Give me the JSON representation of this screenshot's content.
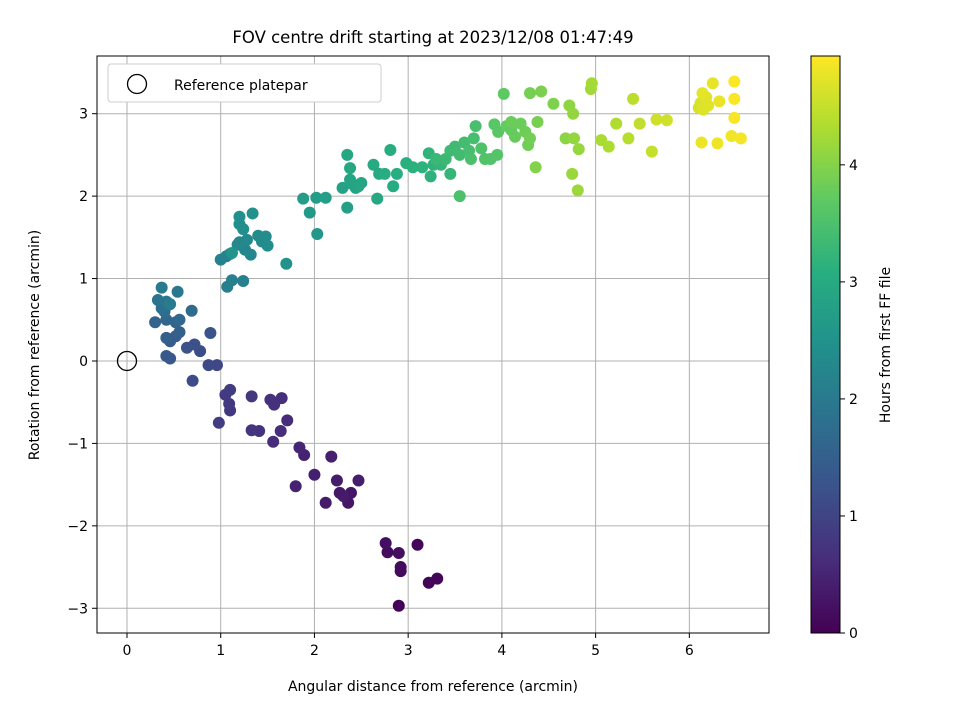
{
  "chart_data": {
    "type": "scatter",
    "title": "FOV centre drift starting at 2023/12/08 01:47:49",
    "xlabel": "Angular distance from reference (arcmin)",
    "ylabel": "Rotation from reference (arcmin)",
    "xlim": [
      -0.32,
      6.85
    ],
    "ylim": [
      -3.3,
      3.7
    ],
    "xticks": [
      0,
      1,
      2,
      3,
      4,
      5,
      6
    ],
    "yticks": [
      -3,
      -2,
      -1,
      0,
      1,
      2,
      3
    ],
    "grid": true,
    "legend": {
      "placement": "top-left",
      "entries": [
        "Reference platepar"
      ]
    },
    "reference_point": {
      "x": 0,
      "y": 0
    },
    "colorbar": {
      "label": "Hours from first FF file",
      "range": [
        0,
        4.93
      ],
      "ticks": [
        0,
        1,
        2,
        3,
        4
      ],
      "colormap": "viridis"
    },
    "points": [
      [
        2.9,
        -2.97,
        0.03
      ],
      [
        3.22,
        -2.69,
        0.05
      ],
      [
        3.31,
        -2.64,
        0.07
      ],
      [
        3.1,
        -2.23,
        0.09
      ],
      [
        2.92,
        -2.55,
        0.12
      ],
      [
        2.92,
        -2.5,
        0.14
      ],
      [
        2.78,
        -2.32,
        0.16
      ],
      [
        2.9,
        -2.33,
        0.18
      ],
      [
        2.76,
        -2.21,
        0.2
      ],
      [
        2.36,
        -1.72,
        0.28
      ],
      [
        2.39,
        -1.6,
        0.3
      ],
      [
        2.27,
        -1.6,
        0.32
      ],
      [
        2.31,
        -1.64,
        0.34
      ],
      [
        2.12,
        -1.72,
        0.36
      ],
      [
        2.24,
        -1.45,
        0.38
      ],
      [
        2.47,
        -1.45,
        0.4
      ],
      [
        2.18,
        -1.16,
        0.42
      ],
      [
        2.0,
        -1.38,
        0.44
      ],
      [
        1.8,
        -1.52,
        0.46
      ],
      [
        1.89,
        -1.14,
        0.48
      ],
      [
        1.84,
        -1.05,
        0.5
      ],
      [
        1.71,
        -0.72,
        0.6
      ],
      [
        1.64,
        -0.85,
        0.62
      ],
      [
        1.56,
        -0.98,
        0.64
      ],
      [
        1.65,
        -0.45,
        0.66
      ],
      [
        1.57,
        -0.53,
        0.68
      ],
      [
        1.53,
        -0.47,
        0.7
      ],
      [
        1.41,
        -0.85,
        0.72
      ],
      [
        1.33,
        -0.84,
        0.74
      ],
      [
        1.33,
        -0.43,
        0.76
      ],
      [
        1.1,
        -0.6,
        0.8
      ],
      [
        1.09,
        -0.52,
        0.82
      ],
      [
        1.05,
        -0.41,
        0.84
      ],
      [
        1.1,
        -0.35,
        0.86
      ],
      [
        0.98,
        -0.75,
        0.88
      ],
      [
        0.96,
        -0.05,
        1.05
      ],
      [
        0.87,
        -0.05,
        1.08
      ],
      [
        0.7,
        -0.24,
        1.12
      ],
      [
        0.78,
        0.12,
        1.16
      ],
      [
        0.72,
        0.2,
        1.2
      ],
      [
        0.64,
        0.16,
        1.24
      ],
      [
        0.89,
        0.34,
        1.28
      ],
      [
        0.46,
        0.03,
        1.32
      ],
      [
        0.42,
        0.06,
        1.36
      ],
      [
        0.46,
        0.24,
        1.4
      ],
      [
        0.52,
        0.3,
        1.44
      ],
      [
        0.42,
        0.28,
        1.48
      ],
      [
        0.56,
        0.35,
        1.52
      ],
      [
        0.3,
        0.47,
        1.56
      ],
      [
        0.52,
        0.47,
        1.6
      ],
      [
        0.42,
        0.5,
        1.64
      ],
      [
        0.56,
        0.5,
        1.68
      ],
      [
        0.69,
        0.61,
        1.72
      ],
      [
        0.4,
        0.6,
        1.76
      ],
      [
        0.37,
        0.64,
        1.8
      ],
      [
        0.44,
        0.68,
        1.84
      ],
      [
        0.33,
        0.74,
        1.88
      ],
      [
        0.42,
        0.72,
        1.92
      ],
      [
        0.54,
        0.84,
        1.96
      ],
      [
        0.37,
        0.89,
        2.0
      ],
      [
        0.46,
        0.69,
        2.04
      ],
      [
        1.07,
        0.9,
        2.1
      ],
      [
        1.12,
        0.98,
        2.12
      ],
      [
        1.24,
        0.97,
        2.14
      ],
      [
        1.0,
        1.23,
        2.16
      ],
      [
        1.06,
        1.27,
        2.18
      ],
      [
        1.1,
        1.3,
        2.2
      ],
      [
        1.26,
        1.35,
        2.22
      ],
      [
        1.32,
        1.29,
        2.24
      ],
      [
        1.2,
        1.44,
        2.26
      ],
      [
        1.18,
        1.41,
        2.28
      ],
      [
        1.28,
        1.47,
        2.3
      ],
      [
        1.4,
        1.52,
        2.32
      ],
      [
        1.44,
        1.45,
        2.34
      ],
      [
        1.48,
        1.51,
        2.36
      ],
      [
        1.5,
        1.4,
        2.38
      ],
      [
        1.2,
        1.66,
        2.4
      ],
      [
        1.24,
        1.6,
        2.42
      ],
      [
        1.2,
        1.75,
        2.44
      ],
      [
        1.34,
        1.79,
        2.46
      ],
      [
        1.7,
        1.18,
        2.5
      ],
      [
        1.12,
        1.31,
        2.52
      ],
      [
        2.03,
        1.54,
        2.6
      ],
      [
        1.95,
        1.8,
        2.65
      ],
      [
        1.88,
        1.97,
        2.7
      ],
      [
        2.02,
        1.98,
        2.72
      ],
      [
        2.12,
        1.98,
        2.75
      ],
      [
        2.35,
        1.86,
        2.78
      ],
      [
        2.3,
        2.1,
        2.8
      ],
      [
        2.4,
        2.15,
        2.82
      ],
      [
        2.44,
        2.1,
        2.84
      ],
      [
        2.38,
        2.2,
        2.86
      ],
      [
        2.5,
        2.16,
        2.88
      ],
      [
        2.47,
        2.12,
        2.9
      ],
      [
        2.38,
        2.34,
        2.92
      ],
      [
        2.35,
        2.5,
        2.94
      ],
      [
        2.67,
        1.97,
        2.96
      ],
      [
        2.63,
        2.38,
        2.98
      ],
      [
        2.69,
        2.27,
        3.0
      ],
      [
        2.84,
        2.12,
        3.02
      ],
      [
        2.75,
        2.27,
        3.04
      ],
      [
        2.81,
        2.56,
        3.06
      ],
      [
        2.88,
        2.27,
        3.08
      ],
      [
        2.98,
        2.4,
        3.1
      ],
      [
        3.05,
        2.35,
        3.12
      ],
      [
        3.15,
        2.35,
        3.14
      ],
      [
        3.24,
        2.24,
        3.16
      ],
      [
        3.27,
        2.38,
        3.18
      ],
      [
        3.22,
        2.52,
        3.2
      ],
      [
        3.35,
        2.38,
        3.22
      ],
      [
        3.45,
        2.27,
        3.24
      ],
      [
        3.3,
        2.45,
        3.3
      ],
      [
        3.4,
        2.45,
        3.32
      ],
      [
        3.45,
        2.55,
        3.34
      ],
      [
        3.5,
        2.6,
        3.36
      ],
      [
        3.55,
        2.5,
        3.38
      ],
      [
        3.6,
        2.65,
        3.4
      ],
      [
        3.65,
        2.55,
        3.42
      ],
      [
        3.7,
        2.7,
        3.44
      ],
      [
        3.72,
        2.85,
        3.46
      ],
      [
        3.67,
        2.45,
        3.48
      ],
      [
        3.55,
        2.0,
        3.5
      ],
      [
        3.78,
        2.58,
        3.52
      ],
      [
        3.82,
        2.45,
        3.54
      ],
      [
        3.88,
        2.45,
        3.56
      ],
      [
        3.95,
        2.5,
        3.58
      ],
      [
        3.92,
        2.87,
        3.62
      ],
      [
        3.96,
        2.78,
        3.64
      ],
      [
        4.02,
        3.24,
        3.7
      ],
      [
        4.05,
        2.85,
        3.72
      ],
      [
        4.1,
        2.8,
        3.74
      ],
      [
        4.14,
        2.72,
        3.76
      ],
      [
        4.1,
        2.9,
        3.78
      ],
      [
        4.2,
        2.88,
        3.8
      ],
      [
        4.25,
        2.78,
        3.82
      ],
      [
        4.28,
        2.62,
        3.84
      ],
      [
        4.3,
        2.7,
        3.86
      ],
      [
        4.3,
        3.25,
        3.88
      ],
      [
        4.38,
        2.9,
        3.9
      ],
      [
        4.42,
        3.27,
        3.92
      ],
      [
        4.55,
        3.12,
        3.95
      ],
      [
        4.36,
        2.35,
        3.98
      ],
      [
        4.68,
        2.7,
        4.05
      ],
      [
        4.72,
        3.1,
        4.08
      ],
      [
        4.76,
        3.0,
        4.1
      ],
      [
        4.77,
        2.7,
        4.12
      ],
      [
        4.82,
        2.57,
        4.14
      ],
      [
        4.75,
        2.27,
        4.16
      ],
      [
        4.81,
        2.07,
        4.18
      ],
      [
        4.95,
        3.3,
        4.22
      ],
      [
        4.96,
        3.37,
        4.24
      ],
      [
        5.06,
        2.68,
        4.28
      ],
      [
        5.14,
        2.6,
        4.3
      ],
      [
        5.22,
        2.88,
        4.34
      ],
      [
        5.35,
        2.7,
        4.38
      ],
      [
        5.4,
        3.18,
        4.42
      ],
      [
        5.47,
        2.88,
        4.45
      ],
      [
        5.6,
        2.54,
        4.5
      ],
      [
        5.65,
        2.93,
        4.55
      ],
      [
        5.76,
        2.92,
        4.58
      ],
      [
        6.1,
        3.07,
        4.62
      ],
      [
        6.12,
        3.13,
        4.65
      ],
      [
        6.15,
        3.05,
        4.68
      ],
      [
        6.2,
        3.1,
        4.7
      ],
      [
        6.18,
        3.2,
        4.72
      ],
      [
        6.14,
        3.25,
        4.74
      ],
      [
        6.25,
        3.37,
        4.76
      ],
      [
        6.32,
        3.15,
        4.78
      ],
      [
        6.13,
        2.65,
        4.8
      ],
      [
        6.3,
        2.64,
        4.82
      ],
      [
        6.45,
        2.73,
        4.84
      ],
      [
        6.55,
        2.7,
        4.86
      ],
      [
        6.48,
        2.95,
        4.88
      ],
      [
        6.48,
        3.18,
        4.9
      ],
      [
        6.48,
        3.39,
        4.92
      ]
    ]
  }
}
